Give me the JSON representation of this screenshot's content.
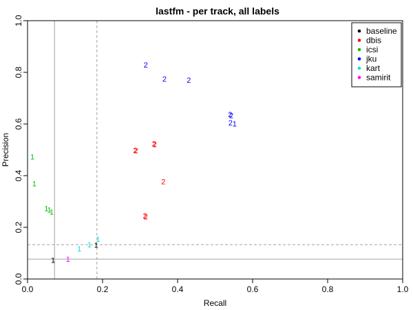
{
  "chart_data": {
    "type": "scatter",
    "title": "lastfm - per track, all labels",
    "xlabel": "Recall",
    "ylabel": "Precision",
    "xlim": [
      0,
      1
    ],
    "ylim": [
      0,
      1
    ],
    "x_ticks": [
      "0.0",
      "0.2",
      "0.4",
      "0.6",
      "0.8",
      "1.0"
    ],
    "y_ticks": [
      "0.0",
      "0.2",
      "0.4",
      "0.6",
      "0.8",
      "1.0"
    ],
    "grid": false,
    "legend_position": "top-right",
    "reference_lines": [
      {
        "axis": "x",
        "value": 0.072,
        "style": "solid"
      },
      {
        "axis": "y",
        "value": 0.077,
        "style": "solid"
      },
      {
        "axis": "x",
        "value": 0.185,
        "style": "dashed"
      },
      {
        "axis": "y",
        "value": 0.133,
        "style": "dashed"
      }
    ],
    "series": [
      {
        "name": "baseline",
        "color": "#000000",
        "points": [
          {
            "x": 0.068,
            "y": 0.074,
            "label": "1"
          },
          {
            "x": 0.183,
            "y": 0.132,
            "label": "1"
          }
        ]
      },
      {
        "name": "dbis",
        "color": "#ff0000",
        "points": [
          {
            "x": 0.287,
            "y": 0.499,
            "label": "2"
          },
          {
            "x": 0.289,
            "y": 0.497,
            "label": "2"
          },
          {
            "x": 0.337,
            "y": 0.524,
            "label": "2"
          },
          {
            "x": 0.339,
            "y": 0.521,
            "label": "2"
          },
          {
            "x": 0.362,
            "y": 0.378,
            "label": "2"
          },
          {
            "x": 0.313,
            "y": 0.245,
            "label": "2"
          },
          {
            "x": 0.315,
            "y": 0.242,
            "label": "2"
          }
        ]
      },
      {
        "name": "icsi",
        "color": "#00c000",
        "points": [
          {
            "x": 0.013,
            "y": 0.473,
            "label": "1"
          },
          {
            "x": 0.018,
            "y": 0.37,
            "label": "1"
          },
          {
            "x": 0.05,
            "y": 0.274,
            "label": "1"
          },
          {
            "x": 0.058,
            "y": 0.268,
            "label": "1"
          },
          {
            "x": 0.064,
            "y": 0.26,
            "label": "1"
          }
        ]
      },
      {
        "name": "jku",
        "color": "#0000ff",
        "points": [
          {
            "x": 0.315,
            "y": 0.829,
            "label": "2"
          },
          {
            "x": 0.365,
            "y": 0.775,
            "label": "2"
          },
          {
            "x": 0.43,
            "y": 0.771,
            "label": "2"
          },
          {
            "x": 0.54,
            "y": 0.637,
            "label": "2"
          },
          {
            "x": 0.543,
            "y": 0.633,
            "label": "2"
          },
          {
            "x": 0.541,
            "y": 0.605,
            "label": "2"
          },
          {
            "x": 0.552,
            "y": 0.601,
            "label": "1"
          }
        ]
      },
      {
        "name": "kart",
        "color": "#00e0e0",
        "points": [
          {
            "x": 0.138,
            "y": 0.118,
            "label": "1"
          },
          {
            "x": 0.165,
            "y": 0.133,
            "label": "1"
          },
          {
            "x": 0.188,
            "y": 0.155,
            "label": "1"
          }
        ]
      },
      {
        "name": "samirit",
        "color": "#ff00ff",
        "points": [
          {
            "x": 0.108,
            "y": 0.078,
            "label": "1"
          }
        ]
      }
    ]
  }
}
